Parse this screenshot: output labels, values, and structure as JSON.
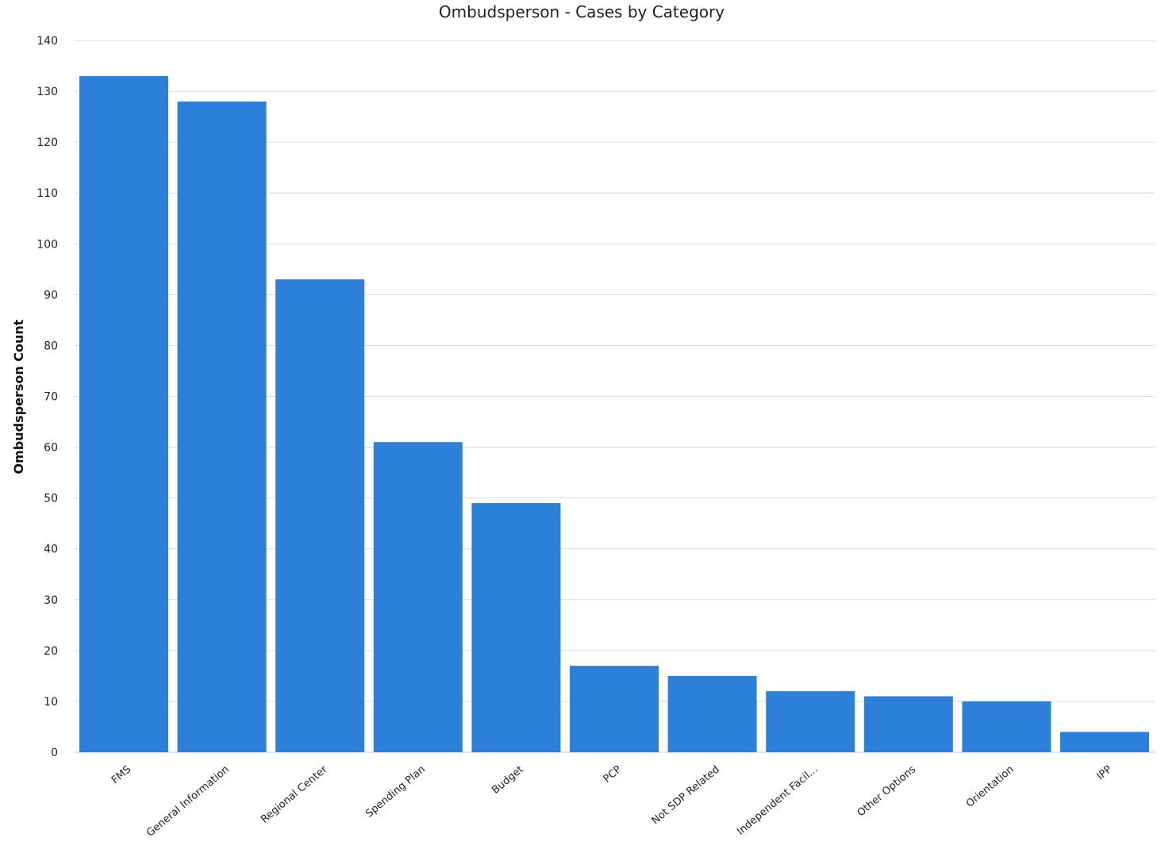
{
  "colors": {
    "bar": "#2d80d9",
    "grid": "#d9d9d9",
    "text": "#222222"
  },
  "chart_data": {
    "type": "bar",
    "title": "Ombudsperson - Cases by Category",
    "xlabel": "",
    "ylabel": "Ombudsperson Count",
    "ylim": [
      0,
      140
    ],
    "yticks": [
      0,
      10,
      20,
      30,
      40,
      50,
      60,
      70,
      80,
      90,
      100,
      110,
      120,
      130,
      140
    ],
    "grid": true,
    "legend": "none",
    "categories": [
      "FMS",
      "General Information",
      "Regional Center",
      "Spending Plan",
      "Budget",
      "PCP",
      "Not SDP Related",
      "Independent Facil...",
      "Other Options",
      "Orientation",
      "IPP"
    ],
    "values": [
      133,
      128,
      93,
      61,
      49,
      17,
      15,
      12,
      11,
      10,
      4
    ]
  }
}
